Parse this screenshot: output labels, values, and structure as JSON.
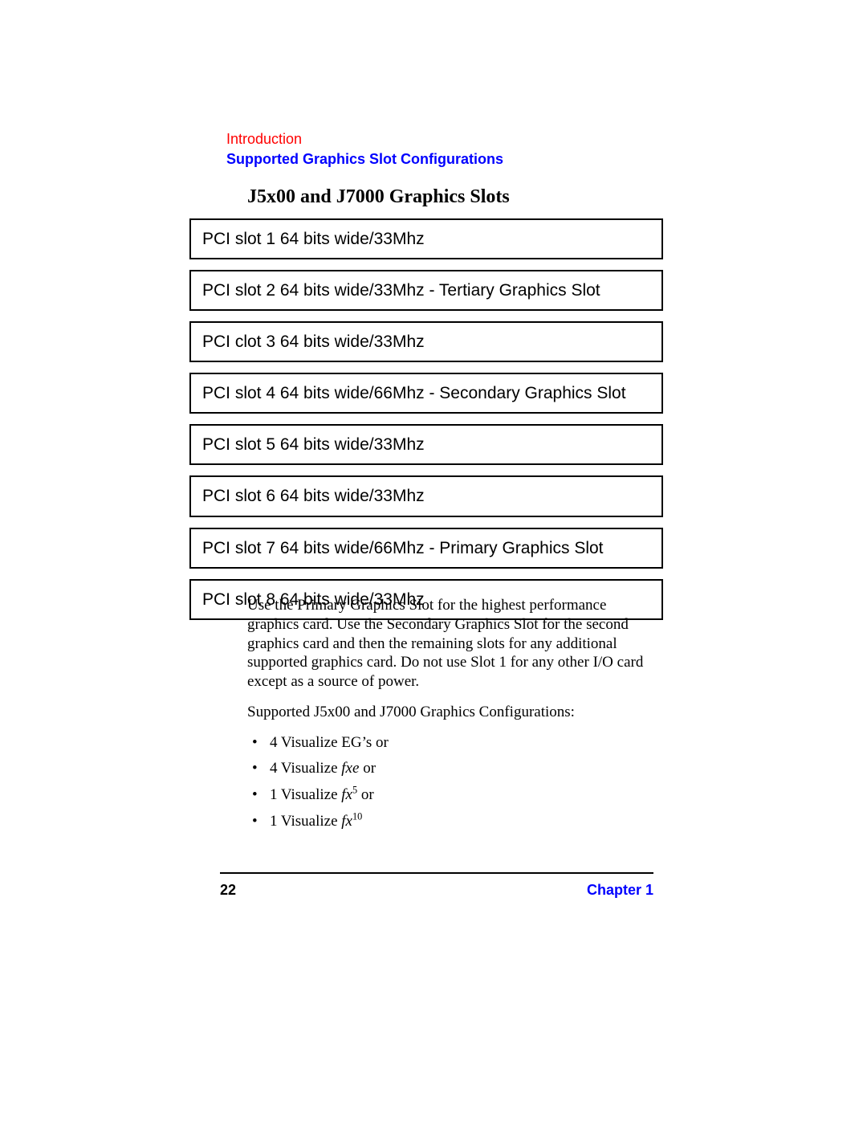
{
  "colors": {
    "link_red": "#ff0000",
    "link_blue": "#0000ff",
    "text": "#000000",
    "border": "#000000",
    "background": "#ffffff"
  },
  "typography": {
    "body_family": "New Century Schoolbook, Times New Roman, serif",
    "ui_family": "Helvetica, Arial, sans-serif",
    "heading_size_pt": 24,
    "slot_size_pt": 21,
    "body_size_pt": 19,
    "header_size_pt": 18
  },
  "header": {
    "intro": "Introduction",
    "section": "Supported Graphics Slot Configurations"
  },
  "heading": "J5x00 and J7000 Graphics Slots",
  "slots": [
    "PCI slot 1 64 bits wide/33Mhz",
    "PCI slot 2 64 bits wide/33Mhz - Tertiary Graphics Slot",
    "PCI clot 3 64 bits wide/33Mhz",
    "PCI slot 4 64 bits wide/66Mhz - Secondary Graphics Slot",
    "PCI slot 5 64 bits wide/33Mhz",
    "PCI slot 6 64 bits wide/33Mhz",
    "PCI slot 7 64 bits wide/66Mhz - Primary Graphics Slot",
    "PCI slot 8 64 bits wide/33Mhz"
  ],
  "paragraph": "Use the Primary Graphics Slot for the highest performance graphics card. Use the Secondary Graphics Slot for the second graphics card and then the remaining slots for any additional supported graphics card. Do not use Slot 1 for any other I/O card except as a source of power.",
  "config_intro": "Supported J5x00 and J7000 Graphics Configurations:",
  "configs": {
    "item1_prefix": "4 Visualize EG’s or",
    "item2_prefix": "4 Visualize ",
    "item2_italic": "fxe",
    "item2_suffix": " or",
    "item3_prefix": "1 Visualize ",
    "item3_italic": "fx",
    "item3_sup": "5",
    "item3_suffix": " or",
    "item4_prefix": "1 Visualize ",
    "item4_italic": "fx",
    "item4_sup": "10"
  },
  "footer": {
    "page": "22",
    "chapter": "Chapter 1"
  }
}
